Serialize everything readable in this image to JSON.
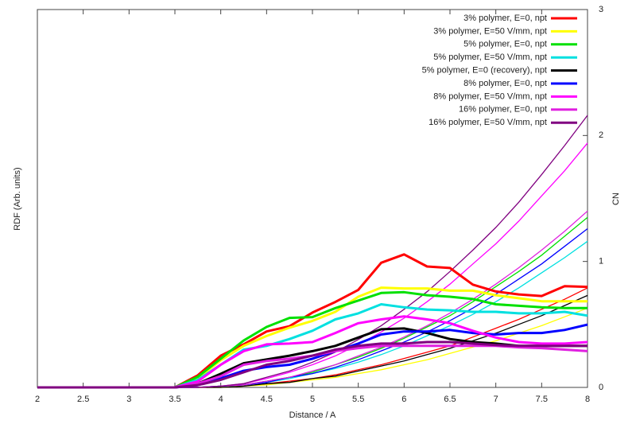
{
  "chart_data": {
    "type": "line",
    "xlabel": "Distance / A",
    "ylabel": "RDF (Arb. units)",
    "y2label": "CN",
    "x": [
      2,
      3,
      3.5,
      3.75,
      4,
      4.25,
      4.5,
      4.75,
      5,
      5.25,
      5.5,
      5.75,
      6,
      6.25,
      6.5,
      6.75,
      7,
      7.25,
      7.5,
      7.75,
      8
    ],
    "xlim": [
      2,
      8
    ],
    "xticks": [
      2,
      2.5,
      3,
      3.5,
      4,
      4.5,
      5,
      5.5,
      6,
      6.5,
      7,
      7.5,
      8
    ],
    "ylim": [
      0,
      5
    ],
    "y2lim": [
      0,
      3
    ],
    "y2ticks": [
      0,
      1,
      2,
      3
    ],
    "legend": "upper right",
    "series": [
      {
        "name": "3% polymer, E=0, npt",
        "color": "#ff0000",
        "values": [
          0,
          0,
          0,
          0.16,
          0.42,
          0.57,
          0.74,
          0.81,
          0.99,
          1.13,
          1.29,
          1.65,
          1.76,
          1.6,
          1.58,
          1.36,
          1.27,
          1.23,
          1.21,
          1.34,
          1.33
        ],
        "y2_values": [
          0,
          0,
          0,
          0,
          0,
          0.01,
          0.03,
          0.05,
          0.07,
          0.1,
          0.14,
          0.18,
          0.23,
          0.28,
          0.33,
          0.4,
          0.47,
          0.54,
          0.62,
          0.7,
          0.79
        ]
      },
      {
        "name": "3% polymer, E=50 V/mm, npt",
        "color": "#ffff00",
        "values": [
          0,
          0,
          0,
          0.12,
          0.36,
          0.55,
          0.68,
          0.79,
          0.88,
          1.0,
          1.2,
          1.32,
          1.31,
          1.31,
          1.28,
          1.28,
          1.22,
          1.18,
          1.14,
          1.14,
          1.14
        ],
        "y2_values": [
          0,
          0,
          0,
          0,
          0,
          0.01,
          0.02,
          0.04,
          0.06,
          0.08,
          0.11,
          0.14,
          0.18,
          0.22,
          0.27,
          0.32,
          0.37,
          0.43,
          0.49,
          0.56,
          0.63
        ]
      },
      {
        "name": "5% polymer, E=0, npt",
        "color": "#00e000",
        "values": [
          0,
          0,
          0,
          0.14,
          0.38,
          0.62,
          0.8,
          0.92,
          0.93,
          1.05,
          1.15,
          1.25,
          1.26,
          1.22,
          1.2,
          1.17,
          1.1,
          1.08,
          1.06,
          1.05,
          1.05
        ],
        "y2_values": [
          0,
          0,
          0,
          0,
          0.01,
          0.02,
          0.05,
          0.08,
          0.12,
          0.18,
          0.24,
          0.31,
          0.39,
          0.48,
          0.57,
          0.68,
          0.8,
          0.92,
          1.05,
          1.2,
          1.35
        ]
      },
      {
        "name": "5% polymer, E=50 V/mm, npt",
        "color": "#00e0e0",
        "values": [
          0,
          0,
          0,
          0.1,
          0.3,
          0.5,
          0.55,
          0.64,
          0.75,
          0.9,
          0.98,
          1.1,
          1.06,
          1.03,
          1.02,
          1.0,
          1.0,
          0.98,
          0.98,
          1.0,
          0.95
        ],
        "y2_values": [
          0,
          0,
          0,
          0,
          0.01,
          0.02,
          0.04,
          0.07,
          0.11,
          0.15,
          0.2,
          0.26,
          0.33,
          0.41,
          0.49,
          0.58,
          0.68,
          0.79,
          0.91,
          1.03,
          1.16
        ]
      },
      {
        "name": "5% polymer, E=0 (recovery), npt",
        "color": "#000000",
        "values": [
          0,
          0,
          0,
          0.05,
          0.18,
          0.32,
          0.37,
          0.42,
          0.48,
          0.55,
          0.66,
          0.77,
          0.78,
          0.72,
          0.64,
          0.6,
          0.58,
          0.55,
          0.55,
          0.55,
          0.55
        ],
        "y2_values": [
          0,
          0,
          0,
          0,
          0,
          0.01,
          0.03,
          0.04,
          0.07,
          0.09,
          0.13,
          0.17,
          0.21,
          0.26,
          0.31,
          0.37,
          0.43,
          0.5,
          0.57,
          0.65,
          0.73
        ]
      },
      {
        "name": "8% polymer, E=0, npt",
        "color": "#0000ff",
        "values": [
          0,
          0,
          0,
          0.03,
          0.12,
          0.22,
          0.27,
          0.3,
          0.38,
          0.48,
          0.58,
          0.7,
          0.74,
          0.74,
          0.76,
          0.72,
          0.7,
          0.72,
          0.72,
          0.76,
          0.83
        ],
        "y2_values": [
          0,
          0,
          0,
          0,
          0.01,
          0.02,
          0.04,
          0.08,
          0.11,
          0.16,
          0.22,
          0.29,
          0.36,
          0.44,
          0.53,
          0.63,
          0.74,
          0.86,
          0.98,
          1.12,
          1.26
        ]
      },
      {
        "name": "8% polymer, E=50 V/mm, npt",
        "color": "#ff00ff",
        "values": [
          0,
          0,
          0,
          0.08,
          0.3,
          0.48,
          0.57,
          0.58,
          0.6,
          0.72,
          0.85,
          0.9,
          0.94,
          0.9,
          0.85,
          0.75,
          0.66,
          0.6,
          0.58,
          0.58,
          0.6
        ],
        "y2_values": [
          0,
          0,
          0,
          0,
          0.01,
          0.03,
          0.07,
          0.12,
          0.18,
          0.25,
          0.34,
          0.44,
          0.55,
          0.68,
          0.82,
          0.98,
          1.14,
          1.32,
          1.52,
          1.72,
          1.94
        ]
      },
      {
        "name": "16% polymer, E=0, npt",
        "color": "#e020e0",
        "values": [
          0,
          0,
          0,
          0.05,
          0.15,
          0.3,
          0.35,
          0.38,
          0.42,
          0.48,
          0.52,
          0.55,
          0.55,
          0.55,
          0.55,
          0.55,
          0.55,
          0.53,
          0.52,
          0.5,
          0.48
        ],
        "y2_values": [
          0,
          0,
          0,
          0,
          0.01,
          0.02,
          0.05,
          0.08,
          0.13,
          0.18,
          0.25,
          0.32,
          0.4,
          0.49,
          0.59,
          0.7,
          0.82,
          0.95,
          1.09,
          1.24,
          1.4
        ]
      },
      {
        "name": "16% polymer, E=50 V/mm, npt",
        "color": "#800080",
        "values": [
          0,
          0,
          0,
          0.03,
          0.1,
          0.2,
          0.3,
          0.35,
          0.42,
          0.5,
          0.55,
          0.58,
          0.58,
          0.6,
          0.6,
          0.58,
          0.56,
          0.55,
          0.55,
          0.55,
          0.55
        ],
        "y2_values": [
          0,
          0,
          0,
          0,
          0.01,
          0.03,
          0.08,
          0.13,
          0.2,
          0.28,
          0.38,
          0.49,
          0.62,
          0.76,
          0.92,
          1.09,
          1.27,
          1.47,
          1.69,
          1.92,
          2.16
        ]
      }
    ]
  }
}
